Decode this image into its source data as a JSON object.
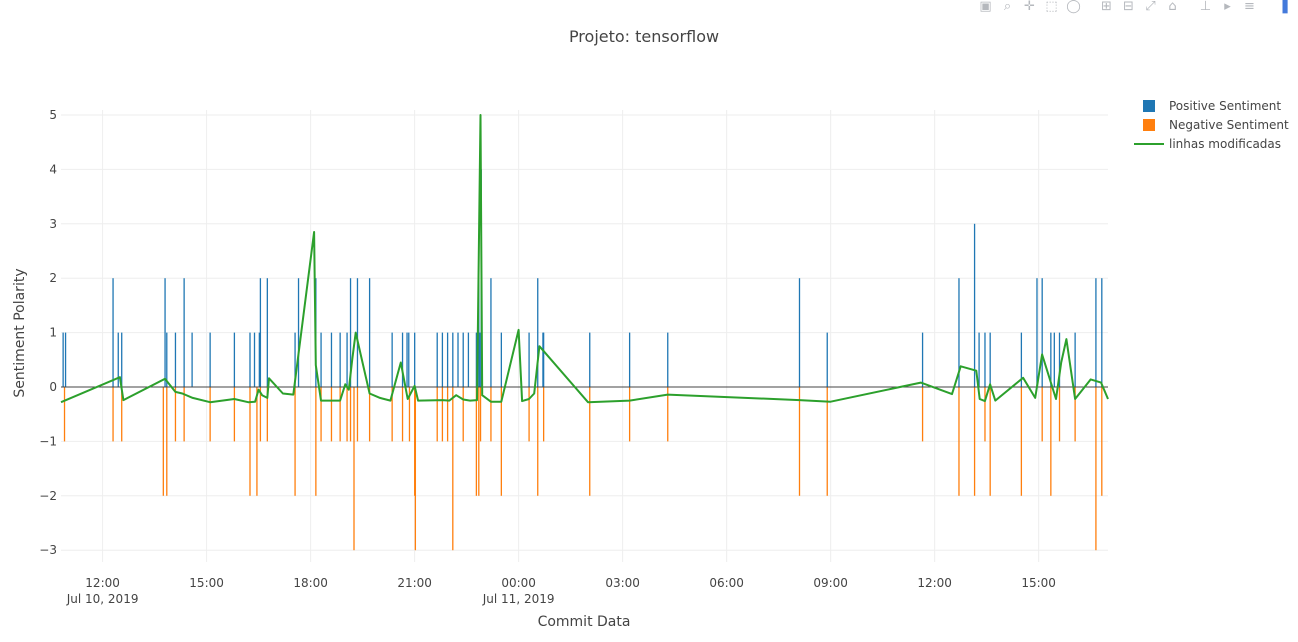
{
  "modebar": {
    "buttons": [
      {
        "name": "camera-icon",
        "glyph": "▣"
      },
      {
        "name": "zoom-icon",
        "glyph": "⌕"
      },
      {
        "name": "pan-icon",
        "glyph": "✛"
      },
      {
        "name": "box-select-icon",
        "glyph": "⬚"
      },
      {
        "name": "lasso-select-icon",
        "glyph": "◯"
      },
      {
        "name": "gap",
        "glyph": ""
      },
      {
        "name": "zoom-in-icon",
        "glyph": "⊞"
      },
      {
        "name": "zoom-out-icon",
        "glyph": "⊟"
      },
      {
        "name": "autoscale-icon",
        "glyph": "⤢"
      },
      {
        "name": "reset-axes-icon",
        "glyph": "⌂"
      },
      {
        "name": "gap",
        "glyph": ""
      },
      {
        "name": "spike-lines-icon",
        "glyph": "⊥"
      },
      {
        "name": "hover-closest-icon",
        "glyph": "▸"
      },
      {
        "name": "hover-compare-icon",
        "glyph": "≡"
      },
      {
        "name": "gap",
        "glyph": ""
      },
      {
        "name": "plotly-logo-icon",
        "glyph": "▐"
      }
    ]
  },
  "chart_data": {
    "type": "bar",
    "title": "Projeto: tensorflow",
    "xlabel": "Commit Data",
    "ylabel": "Sentiment Polarity",
    "xlim_hours": [
      10.8,
      41.0
    ],
    "ylim": [
      -3.45,
      5.3
    ],
    "yticks": [
      5,
      4,
      3,
      2,
      1,
      0,
      -1,
      -2,
      -3
    ],
    "ytick_labels": [
      "5",
      "4",
      "3",
      "2",
      "1",
      "0",
      "−1",
      "−2",
      "−3"
    ],
    "xticks": [
      {
        "h": 12,
        "label": "12:00",
        "sub": "Jul 10, 2019"
      },
      {
        "h": 15,
        "label": "15:00",
        "sub": ""
      },
      {
        "h": 18,
        "label": "18:00",
        "sub": ""
      },
      {
        "h": 21,
        "label": "21:00",
        "sub": ""
      },
      {
        "h": 24,
        "label": "00:00",
        "sub": "Jul 11, 2019"
      },
      {
        "h": 27,
        "label": "03:00",
        "sub": ""
      },
      {
        "h": 30,
        "label": "06:00",
        "sub": ""
      },
      {
        "h": 33,
        "label": "09:00",
        "sub": ""
      },
      {
        "h": 36,
        "label": "12:00",
        "sub": ""
      },
      {
        "h": 39,
        "label": "15:00",
        "sub": ""
      }
    ],
    "grid": true,
    "legend_position": "top-right",
    "series": [
      {
        "name": "Positive Sentiment",
        "kind": "bar",
        "color": "#1f77b4",
        "points": [
          [
            10.86,
            1
          ],
          [
            10.93,
            1
          ],
          [
            12.3,
            2
          ],
          [
            12.45,
            1
          ],
          [
            12.55,
            1
          ],
          [
            13.8,
            2
          ],
          [
            13.85,
            1
          ],
          [
            14.1,
            1
          ],
          [
            14.35,
            2
          ],
          [
            14.58,
            1
          ],
          [
            15.1,
            1
          ],
          [
            15.8,
            1
          ],
          [
            16.25,
            1
          ],
          [
            16.38,
            1
          ],
          [
            16.52,
            1
          ],
          [
            16.55,
            2
          ],
          [
            16.75,
            2
          ],
          [
            17.55,
            1
          ],
          [
            17.65,
            2
          ],
          [
            18.15,
            2
          ],
          [
            18.3,
            1
          ],
          [
            18.6,
            1
          ],
          [
            18.85,
            1
          ],
          [
            19.05,
            1
          ],
          [
            19.15,
            2
          ],
          [
            19.35,
            2
          ],
          [
            19.7,
            2
          ],
          [
            20.35,
            1
          ],
          [
            20.65,
            1
          ],
          [
            20.78,
            1
          ],
          [
            20.83,
            1
          ],
          [
            21.0,
            1
          ],
          [
            21.65,
            1
          ],
          [
            21.8,
            1
          ],
          [
            21.95,
            1
          ],
          [
            22.1,
            1
          ],
          [
            22.25,
            1
          ],
          [
            22.4,
            1
          ],
          [
            22.55,
            1
          ],
          [
            22.78,
            1
          ],
          [
            22.85,
            2
          ],
          [
            22.88,
            1
          ],
          [
            22.92,
            4
          ],
          [
            23.2,
            2
          ],
          [
            23.5,
            1
          ],
          [
            24.3,
            1
          ],
          [
            24.55,
            2
          ],
          [
            24.7,
            1
          ],
          [
            24.72,
            1
          ],
          [
            26.05,
            1
          ],
          [
            27.2,
            1
          ],
          [
            28.3,
            1
          ],
          [
            32.1,
            2
          ],
          [
            32.9,
            1
          ],
          [
            35.65,
            1
          ],
          [
            36.7,
            2
          ],
          [
            37.15,
            3
          ],
          [
            37.28,
            1
          ],
          [
            37.45,
            1
          ],
          [
            37.6,
            1
          ],
          [
            38.5,
            1
          ],
          [
            38.95,
            2
          ],
          [
            39.1,
            2
          ],
          [
            39.35,
            1
          ],
          [
            39.45,
            1
          ],
          [
            39.6,
            1
          ],
          [
            40.05,
            1
          ],
          [
            40.65,
            2
          ],
          [
            40.82,
            2
          ]
        ]
      },
      {
        "name": "Negative Sentiment",
        "kind": "bar",
        "color": "#ff7f0e",
        "points": [
          [
            10.9,
            -1
          ],
          [
            12.3,
            -1
          ],
          [
            12.55,
            -1
          ],
          [
            13.75,
            -2
          ],
          [
            13.85,
            -2
          ],
          [
            14.1,
            -1
          ],
          [
            14.35,
            -1
          ],
          [
            15.1,
            -1
          ],
          [
            15.8,
            -1
          ],
          [
            16.25,
            -2
          ],
          [
            16.45,
            -2
          ],
          [
            16.55,
            -1
          ],
          [
            16.75,
            -1
          ],
          [
            17.55,
            -2
          ],
          [
            18.15,
            -2
          ],
          [
            18.3,
            -1
          ],
          [
            18.6,
            -1
          ],
          [
            18.85,
            -1
          ],
          [
            19.05,
            -1
          ],
          [
            19.15,
            -1
          ],
          [
            19.25,
            -3
          ],
          [
            19.35,
            -1
          ],
          [
            19.7,
            -1
          ],
          [
            20.35,
            -1
          ],
          [
            20.65,
            -1
          ],
          [
            20.85,
            -1
          ],
          [
            21.0,
            -2
          ],
          [
            21.02,
            -3
          ],
          [
            21.65,
            -1
          ],
          [
            21.8,
            -1
          ],
          [
            21.95,
            -1
          ],
          [
            22.1,
            -3
          ],
          [
            22.4,
            -1
          ],
          [
            22.78,
            -2
          ],
          [
            22.85,
            -2
          ],
          [
            22.9,
            -1
          ],
          [
            23.2,
            -1
          ],
          [
            23.5,
            -2
          ],
          [
            24.3,
            -1
          ],
          [
            24.55,
            -2
          ],
          [
            24.72,
            -1
          ],
          [
            26.05,
            -2
          ],
          [
            27.2,
            -1
          ],
          [
            28.3,
            -1
          ],
          [
            32.1,
            -2
          ],
          [
            32.9,
            -2
          ],
          [
            35.65,
            -1
          ],
          [
            36.7,
            -2
          ],
          [
            37.15,
            -2
          ],
          [
            37.45,
            -1
          ],
          [
            37.6,
            -2
          ],
          [
            38.5,
            -2
          ],
          [
            39.1,
            -1
          ],
          [
            39.35,
            -2
          ],
          [
            39.6,
            -1
          ],
          [
            40.05,
            -1
          ],
          [
            40.65,
            -3
          ],
          [
            40.82,
            -2
          ]
        ]
      },
      {
        "name": "linhas modificadas",
        "kind": "line",
        "color": "#2ca02c",
        "points": [
          [
            10.8,
            -0.28
          ],
          [
            12.5,
            0.18
          ],
          [
            12.6,
            -0.24
          ],
          [
            13.8,
            0.15
          ],
          [
            14.1,
            -0.09
          ],
          [
            14.3,
            -0.12
          ],
          [
            14.6,
            -0.2
          ],
          [
            15.1,
            -0.28
          ],
          [
            15.8,
            -0.22
          ],
          [
            16.2,
            -0.28
          ],
          [
            16.4,
            -0.27
          ],
          [
            16.5,
            -0.05
          ],
          [
            16.6,
            -0.15
          ],
          [
            16.75,
            -0.2
          ],
          [
            16.8,
            0.16
          ],
          [
            17.2,
            -0.12
          ],
          [
            17.5,
            -0.14
          ],
          [
            18.1,
            2.85
          ],
          [
            18.15,
            0.4
          ],
          [
            18.3,
            -0.25
          ],
          [
            18.6,
            -0.25
          ],
          [
            18.85,
            -0.25
          ],
          [
            19.0,
            0.05
          ],
          [
            19.1,
            -0.05
          ],
          [
            19.2,
            0.5
          ],
          [
            19.3,
            1.0
          ],
          [
            19.7,
            -0.12
          ],
          [
            20.0,
            -0.2
          ],
          [
            20.3,
            -0.25
          ],
          [
            20.6,
            0.45
          ],
          [
            20.8,
            -0.22
          ],
          [
            21.0,
            0.02
          ],
          [
            21.1,
            -0.25
          ],
          [
            21.8,
            -0.24
          ],
          [
            22.0,
            -0.25
          ],
          [
            22.2,
            -0.15
          ],
          [
            22.4,
            -0.23
          ],
          [
            22.6,
            -0.25
          ],
          [
            22.8,
            -0.24
          ],
          [
            22.9,
            5.0
          ],
          [
            22.95,
            -0.15
          ],
          [
            23.2,
            -0.27
          ],
          [
            23.5,
            -0.27
          ],
          [
            24.0,
            1.05
          ],
          [
            24.1,
            -0.26
          ],
          [
            24.3,
            -0.22
          ],
          [
            24.45,
            -0.12
          ],
          [
            24.6,
            0.75
          ],
          [
            26.0,
            -0.28
          ],
          [
            27.2,
            -0.25
          ],
          [
            28.3,
            -0.14
          ],
          [
            32.1,
            -0.24
          ],
          [
            33.0,
            -0.27
          ],
          [
            35.6,
            0.08
          ],
          [
            36.5,
            -0.13
          ],
          [
            36.75,
            0.38
          ],
          [
            37.2,
            0.3
          ],
          [
            37.3,
            -0.22
          ],
          [
            37.45,
            -0.26
          ],
          [
            37.6,
            0.05
          ],
          [
            37.75,
            -0.25
          ],
          [
            38.55,
            0.17
          ],
          [
            38.9,
            -0.2
          ],
          [
            39.1,
            0.6
          ],
          [
            39.5,
            -0.22
          ],
          [
            39.65,
            0.45
          ],
          [
            39.8,
            0.88
          ],
          [
            40.05,
            -0.22
          ],
          [
            40.5,
            0.14
          ],
          [
            40.8,
            0.08
          ],
          [
            41.0,
            -0.22
          ]
        ]
      }
    ]
  }
}
